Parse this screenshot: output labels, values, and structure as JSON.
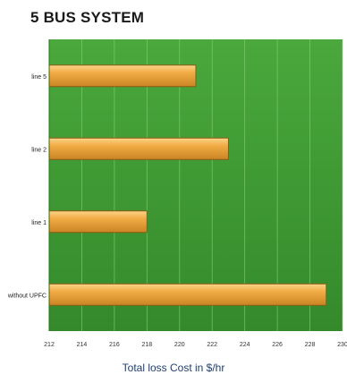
{
  "chart_data": {
    "type": "bar",
    "orientation": "horizontal",
    "title": "5 BUS SYSTEM",
    "xlabel": "Total loss Cost in $/hr",
    "ylabel": "",
    "categories": [
      "without UPFC",
      "line 1",
      "line 2",
      "line 5"
    ],
    "values": [
      229,
      218,
      223,
      221
    ],
    "xlim": [
      212,
      230
    ],
    "xticks": [
      "212",
      "214",
      "216",
      "218",
      "220",
      "222",
      "224",
      "226",
      "228",
      "230"
    ],
    "grid": true,
    "colors": {
      "plot_background": "#3f9a35",
      "bar_fill": "#f0a43a",
      "gridline": "#8fd07f"
    }
  }
}
